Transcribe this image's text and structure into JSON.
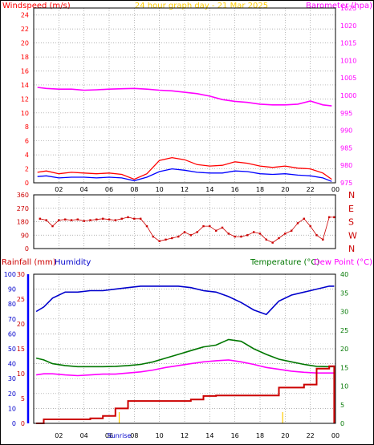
{
  "chart_data": [
    {
      "type": "line",
      "title": "24 hour graph day - 21 Mar 2025",
      "left_axis": {
        "label": "Windspeed (m/s)",
        "color": "#ff0000",
        "ylim": [
          0,
          25
        ],
        "ticks": [
          "0",
          "2",
          "4",
          "6",
          "8",
          "10",
          "12",
          "14",
          "16",
          "18",
          "20",
          "22",
          "24"
        ]
      },
      "right_axis": {
        "label": "Barometer (hpa)",
        "color": "#ff00ff",
        "ylim": [
          975,
          1025
        ],
        "ticks": [
          "975",
          "980",
          "985",
          "990",
          "995",
          "1000",
          "1005",
          "1010",
          "1015",
          "1020",
          "1025"
        ]
      },
      "x_ticks": [
        "02",
        "04",
        "06",
        "08",
        "10",
        "12",
        "14",
        "16",
        "18",
        "20",
        "22",
        "00"
      ],
      "x_hours": [
        0.3,
        1,
        2,
        3,
        4,
        5,
        6,
        7,
        8,
        9,
        10,
        11,
        12,
        13,
        14,
        15,
        16,
        17,
        18,
        19,
        20,
        21,
        22,
        23,
        23.7
      ],
      "series": [
        {
          "color": "#ff00ff",
          "axis": "right",
          "values": [
            1002.3,
            1002,
            1001.8,
            1001.8,
            1001.5,
            1001.6,
            1001.8,
            1001.9,
            1002,
            1001.8,
            1001.5,
            1001.3,
            1000.9,
            1000.5,
            999.8,
            998.8,
            998.3,
            998,
            997.5,
            997.3,
            997.3,
            997.5,
            998.4,
            997.3,
            997
          ]
        },
        {
          "color": "#ff0000",
          "axis": "left",
          "values": [
            1.5,
            1.7,
            1.3,
            1.5,
            1.4,
            1.3,
            1.4,
            1.2,
            0.5,
            1.3,
            3.2,
            3.6,
            3.3,
            2.6,
            2.4,
            2.5,
            3,
            2.8,
            2.4,
            2.2,
            2.4,
            2.1,
            2,
            1.4,
            0.5
          ]
        },
        {
          "color": "#0000ff",
          "axis": "left",
          "values": [
            0.9,
            1,
            0.7,
            0.8,
            0.8,
            0.7,
            0.8,
            0.7,
            0.3,
            0.8,
            1.6,
            2,
            1.8,
            1.5,
            1.4,
            1.4,
            1.7,
            1.6,
            1.3,
            1.2,
            1.3,
            1.1,
            1,
            0.7,
            0.2
          ]
        }
      ]
    },
    {
      "type": "scatter",
      "left_axis": {
        "label": "",
        "ylim": [
          0,
          360
        ],
        "ticks": [
          "0",
          "90",
          "180",
          "270",
          "360"
        ]
      },
      "right_labels": [
        "N",
        "W",
        "S",
        "E",
        "N"
      ],
      "x_hours": [
        0.5,
        1,
        1.5,
        2,
        2.5,
        3,
        3.5,
        4,
        4.5,
        5,
        5.5,
        6,
        6.5,
        7,
        7.5,
        8,
        8.5,
        9,
        9.5,
        10,
        10.5,
        11,
        11.5,
        12,
        12.5,
        13,
        13.5,
        14,
        14.5,
        15,
        15.5,
        16,
        16.5,
        17,
        17.5,
        18,
        18.5,
        19,
        19.5,
        20,
        20.5,
        21,
        21.5,
        22,
        22.5,
        23,
        23.5,
        23.9
      ],
      "series": [
        {
          "name": "",
          "color": "#cc0000",
          "values": [
            200,
            190,
            150,
            190,
            195,
            190,
            195,
            185,
            190,
            195,
            200,
            195,
            190,
            200,
            210,
            200,
            200,
            150,
            80,
            50,
            60,
            70,
            80,
            110,
            90,
            110,
            150,
            150,
            120,
            140,
            100,
            80,
            80,
            90,
            110,
            100,
            60,
            40,
            70,
            100,
            120,
            170,
            200,
            150,
            90,
            60,
            210,
            210
          ]
        }
      ]
    },
    {
      "type": "line",
      "headers": {
        "rainfall": "Rainfall (mm)",
        "humidity": "Humidity",
        "temperature": "Temperature (°C)",
        "dewpoint": "Dew Point (°C)"
      },
      "header_colors": {
        "rainfall": "#cc0000",
        "humidity": "#0000cc",
        "temperature": "#007700",
        "dewpoint": "#ff00ff"
      },
      "humidity_axis": {
        "ylim": [
          0,
          100
        ],
        "ticks": [
          "0",
          "10",
          "20",
          "30",
          "40",
          "50",
          "60",
          "70",
          "80",
          "90",
          "100"
        ]
      },
      "rain_axis": {
        "ylim": [
          0,
          30
        ],
        "ticks": [
          "0",
          "5",
          "10",
          "15",
          "20",
          "25",
          "30"
        ]
      },
      "temp_axis": {
        "ylim": [
          0,
          40
        ],
        "ticks": [
          "0",
          "5",
          "10",
          "15",
          "20",
          "25",
          "30",
          "35",
          "40"
        ]
      },
      "x_ticks": [
        "02",
        "04",
        "06",
        "08",
        "10",
        "12",
        "14",
        "16",
        "18",
        "20",
        "22",
        "00"
      ],
      "x_hours": [
        0.2,
        0.8,
        1.5,
        2.5,
        3.5,
        4.5,
        5.5,
        6.5,
        7.5,
        8.5,
        9.5,
        10.5,
        11.5,
        12.5,
        13.5,
        14.5,
        15.5,
        16.5,
        17.5,
        18.5,
        19.5,
        20.5,
        21.5,
        22.5,
        23.5,
        23.9
      ],
      "sunrise_label": "Sunrise",
      "sunrise_hour": 6.8,
      "sunset_hour": 19.8,
      "series": [
        {
          "name": "Humidity",
          "color": "#0000cc",
          "axis": "humidity",
          "values": [
            75,
            78,
            84,
            88,
            88,
            89,
            89,
            90,
            91,
            92,
            92,
            92,
            92,
            91,
            89,
            88,
            85,
            81,
            76,
            73,
            82,
            86,
            88,
            90,
            92,
            92
          ]
        },
        {
          "name": "Temperature (°C)",
          "color": "#007700",
          "axis": "temp",
          "values": [
            17.5,
            17,
            16,
            15.5,
            15.2,
            15.2,
            15.2,
            15.3,
            15.5,
            15.8,
            16.5,
            17.5,
            18.5,
            19.5,
            20.5,
            21,
            22.5,
            22,
            20,
            18.5,
            17.2,
            16.5,
            15.8,
            15.3,
            15.2,
            15.2
          ]
        },
        {
          "name": "Dew Point (°C)",
          "color": "#ff00ff",
          "axis": "temp",
          "values": [
            13,
            13.3,
            13.3,
            13,
            12.8,
            13,
            13.2,
            13.2,
            13.5,
            13.8,
            14.3,
            15,
            15.5,
            16,
            16.5,
            16.8,
            17,
            16.5,
            15.8,
            15,
            14.5,
            14,
            13.7,
            13.5,
            13.5,
            13.5
          ]
        },
        {
          "name": "Rainfall (mm)",
          "color": "#cc0000",
          "axis": "rain",
          "values": [
            0,
            0.8,
            0.8,
            0.8,
            0.8,
            1,
            1.5,
            3,
            4.5,
            4.5,
            4.5,
            4.5,
            4.5,
            4.8,
            5.5,
            5.6,
            5.6,
            5.6,
            5.6,
            5.6,
            7.2,
            7.2,
            7.8,
            11,
            11.5,
            0
          ]
        }
      ]
    }
  ]
}
